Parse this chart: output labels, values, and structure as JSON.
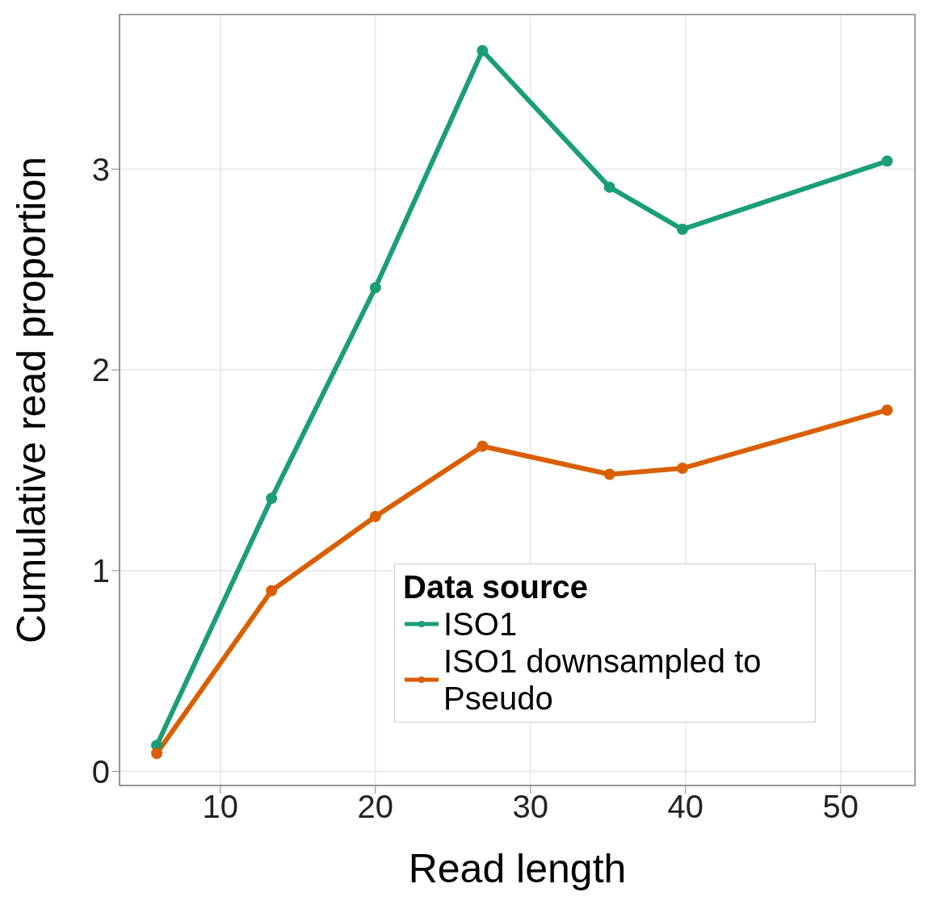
{
  "chart_data": {
    "type": "line",
    "xlabel": "Read length",
    "ylabel": "Cumulative read proportion",
    "legend_title": "Data source",
    "xlim": [
      3.5,
      54.8
    ],
    "xticks": [
      10,
      20,
      30,
      40,
      50
    ],
    "ylim": [
      -0.07,
      3.77
    ],
    "yticks": [
      0,
      1,
      2,
      3
    ],
    "grid": true,
    "legend": "bottom",
    "marker": "circle",
    "line_style": "solid",
    "series": [
      {
        "name": "ISO1",
        "color": "#1b9e77",
        "x": [
          5.9,
          13.3,
          20,
          26.9,
          35.1,
          39.8,
          53
        ],
        "values": [
          0.13,
          1.36,
          2.41,
          3.59,
          2.91,
          2.7,
          3.04
        ]
      },
      {
        "name": "ISO1 downsampled to Pseudo",
        "color": "#d95f02",
        "x": [
          5.9,
          13.3,
          20,
          26.9,
          35.1,
          39.8,
          53
        ],
        "values": [
          0.09,
          0.9,
          1.27,
          1.62,
          1.48,
          1.51,
          1.8
        ]
      }
    ]
  }
}
